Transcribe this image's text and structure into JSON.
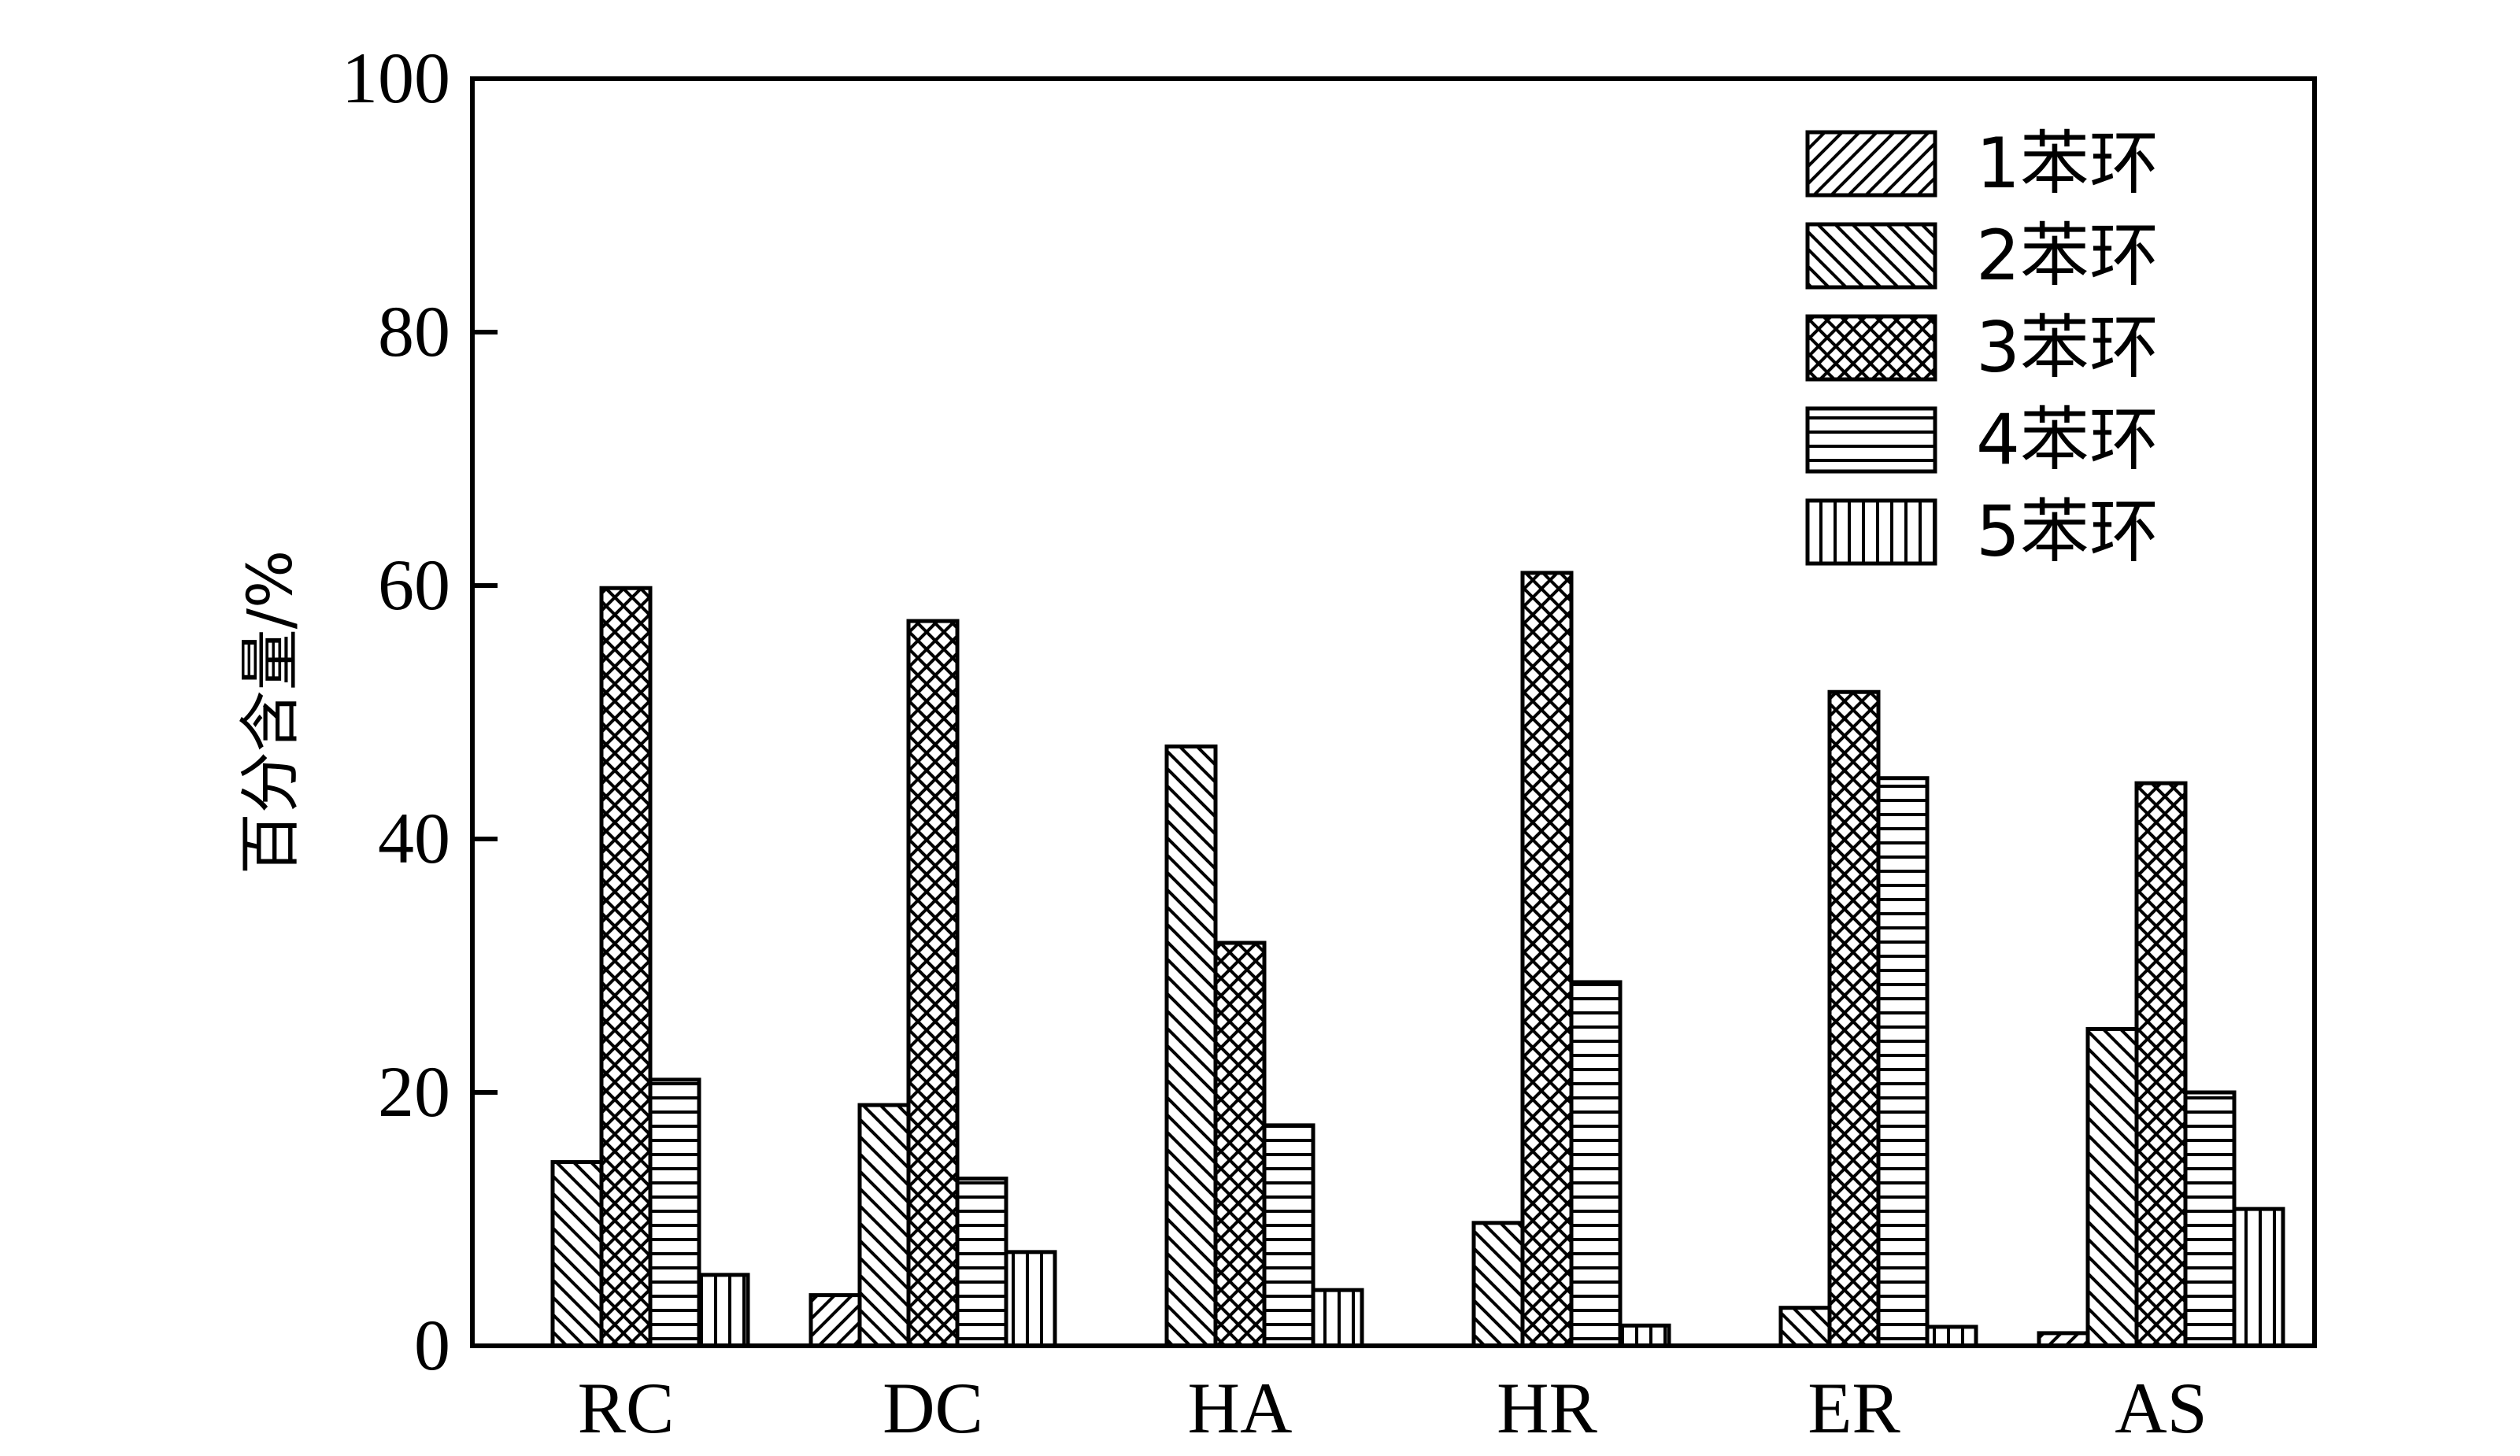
{
  "chart_data": {
    "type": "bar",
    "title": "",
    "xlabel": "",
    "ylabel": "百分含量/%",
    "ylim": [
      0,
      100
    ],
    "yticks": [
      "0",
      "20",
      "40",
      "60",
      "80",
      "100"
    ],
    "categories": [
      "RC",
      "DC",
      "HA",
      "HR",
      "ER",
      "AS"
    ],
    "legend_position": "top-right",
    "grid": false,
    "series": [
      {
        "name": "1苯环",
        "pattern": "diag-up",
        "values": [
          0,
          4,
          0,
          0,
          0,
          1
        ]
      },
      {
        "name": "2苯环",
        "pattern": "diag-down",
        "values": [
          14.5,
          19,
          47.3,
          9.7,
          3,
          25
        ]
      },
      {
        "name": "3苯环",
        "pattern": "crosshatch",
        "values": [
          59.8,
          57.2,
          31.8,
          61,
          51.6,
          44.4
        ]
      },
      {
        "name": "4苯环",
        "pattern": "horizontal",
        "values": [
          21,
          13.2,
          17.4,
          28.7,
          44.8,
          20
        ]
      },
      {
        "name": "5苯环",
        "pattern": "vertical",
        "values": [
          5.6,
          7.4,
          4.4,
          1.6,
          1.5,
          10.8
        ]
      }
    ],
    "colors": {
      "stroke": "#000000",
      "fill": "#ffffff"
    }
  }
}
